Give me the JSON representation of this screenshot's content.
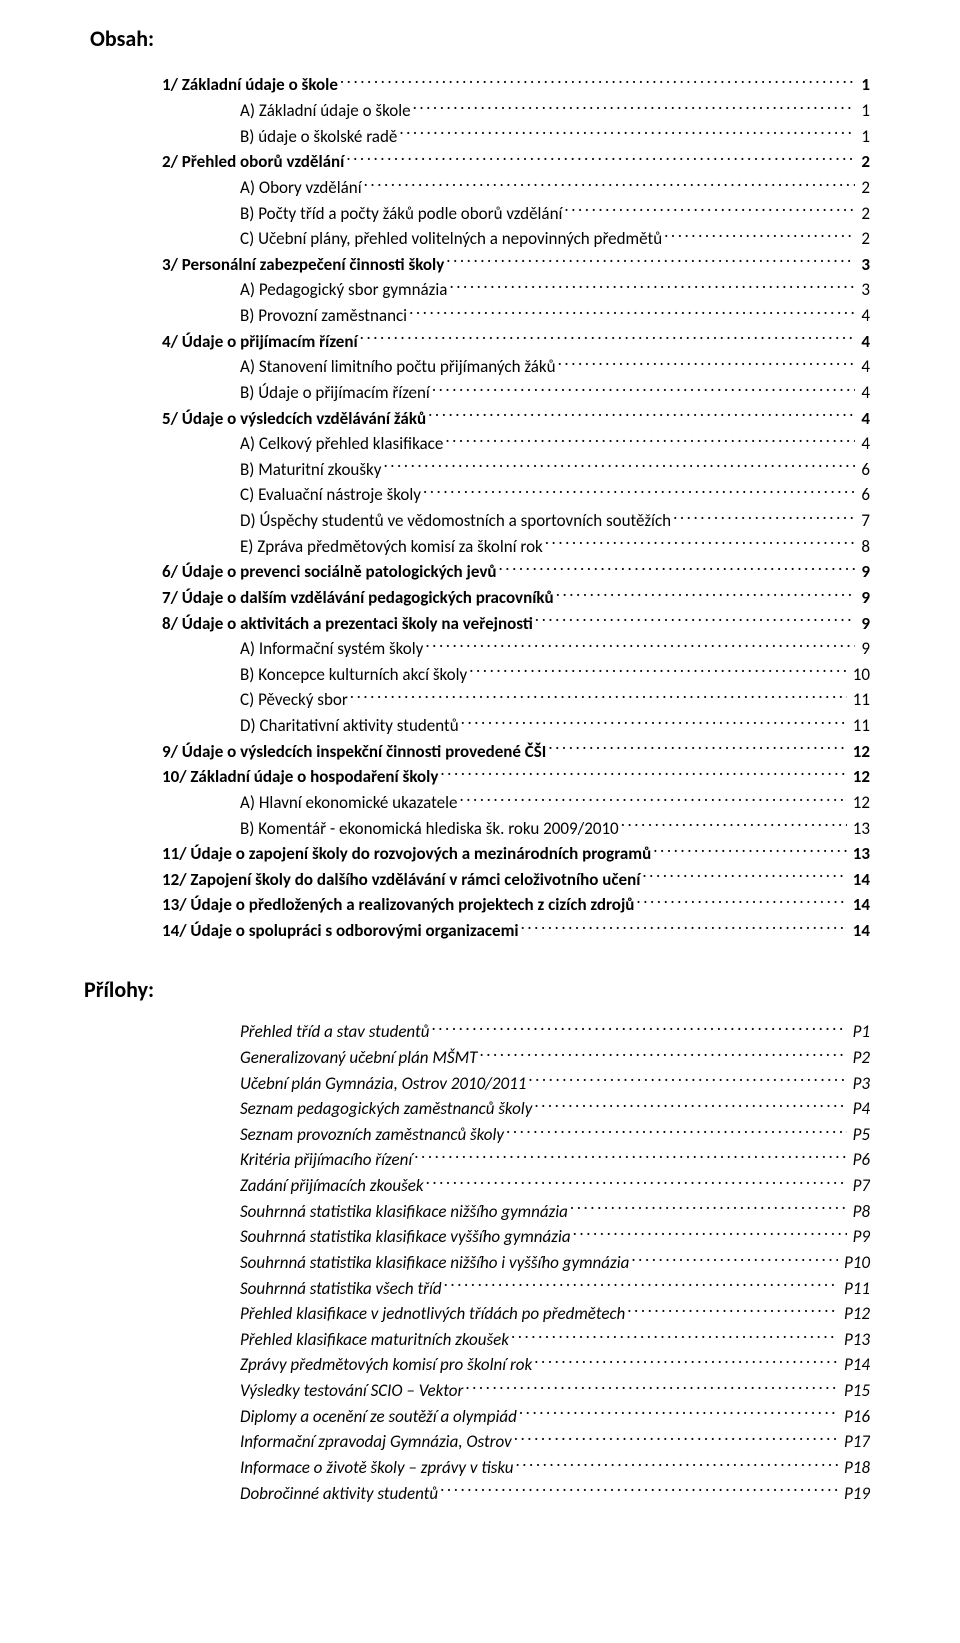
{
  "page": {
    "heading": "Obsah:",
    "subheading": "Přílohy:"
  },
  "toc": [
    {
      "level": 1,
      "bold": true,
      "label": "1/   Základní údaje o škole",
      "page": "1"
    },
    {
      "level": 2,
      "bold": false,
      "label": "A)  Základní údaje o škole",
      "page": "1"
    },
    {
      "level": 2,
      "bold": false,
      "label": "B) údaje o školské radě",
      "page": "1"
    },
    {
      "level": 1,
      "bold": true,
      "label": "2/   Přehled oborů vzdělání",
      "page": "2"
    },
    {
      "level": 2,
      "bold": false,
      "label": "A) Obory vzdělání",
      "page": "2"
    },
    {
      "level": 2,
      "bold": false,
      "label": "B) Počty tříd a počty žáků podle oborů vzdělání",
      "page": "2"
    },
    {
      "level": 2,
      "bold": false,
      "label": "C) Učební plány, přehled volitelných a nepovinných předmětů",
      "page": "2"
    },
    {
      "level": 1,
      "bold": true,
      "label": "3/   Personální zabezpečení činnosti školy",
      "page": "3"
    },
    {
      "level": 2,
      "bold": false,
      "label": "A) Pedagogický sbor gymnázia",
      "page": "3"
    },
    {
      "level": 2,
      "bold": false,
      "label": "B) Provozní zaměstnanci",
      "page": "4"
    },
    {
      "level": 1,
      "bold": true,
      "label": "4/   Údaje o přijímacím řízení",
      "page": "4"
    },
    {
      "level": 2,
      "bold": false,
      "label": "A)  Stanovení limitního počtu přijímaných žáků",
      "page": "4"
    },
    {
      "level": 2,
      "bold": false,
      "label": "B) Údaje o přijímacím řízení",
      "page": "4"
    },
    {
      "level": 1,
      "bold": true,
      "label": "5/   Údaje o výsledcích vzdělávání žáků",
      "page": "4"
    },
    {
      "level": 2,
      "bold": false,
      "label": "A)  Celkový přehled klasifikace",
      "page": "4"
    },
    {
      "level": 2,
      "bold": false,
      "label": "B)  Maturitní zkoušky",
      "page": "6"
    },
    {
      "level": 2,
      "bold": false,
      "label": "C) Evaluační nástroje školy",
      "page": "6"
    },
    {
      "level": 2,
      "bold": false,
      "label": "D) Úspěchy studentů ve vědomostních a sportovních soutěžích",
      "page": "7"
    },
    {
      "level": 2,
      "bold": false,
      "label": "E) Zpráva předmětových komisí za školní rok",
      "page": "8"
    },
    {
      "level": 1,
      "bold": true,
      "label": "6/   Údaje o prevenci sociálně patologických jevů",
      "page": "9"
    },
    {
      "level": 1,
      "bold": true,
      "label": "7/   Údaje o dalším vzdělávání pedagogických pracovníků",
      "page": "9"
    },
    {
      "level": 1,
      "bold": true,
      "label": "8/   Údaje o aktivitách a prezentaci školy na veřejnosti",
      "page": "9"
    },
    {
      "level": 2,
      "bold": false,
      "label": "A) Informační systém školy",
      "page": "9"
    },
    {
      "level": 2,
      "bold": false,
      "label": "B) Koncepce kulturních akcí školy",
      "page": "10"
    },
    {
      "level": 2,
      "bold": false,
      "label": "C) Pěvecký sbor",
      "page": "11"
    },
    {
      "level": 2,
      "bold": false,
      "label": "D) Charitativní aktivity studentů",
      "page": "11"
    },
    {
      "level": 1,
      "bold": true,
      "label": "9/    Údaje o výsledcích inspekční činnosti provedené ČŠI",
      "page": "12"
    },
    {
      "level": 1,
      "bold": true,
      "label": "10/  Základní údaje o hospodaření školy",
      "page": "12"
    },
    {
      "level": 2,
      "bold": false,
      "label": "A)    Hlavní ekonomické ukazatele",
      "page": "12"
    },
    {
      "level": 2,
      "bold": false,
      "label": "B)    Komentář  - ekonomická hlediska šk. roku 2009/2010",
      "page": "13"
    },
    {
      "level": 1,
      "bold": true,
      "label": "11/  Údaje o zapojení školy do rozvojových a mezinárodních programů",
      "page": "13"
    },
    {
      "level": 1,
      "bold": true,
      "label": "12/  Zapojení školy do dalšího vzdělávání v rámci celoživotního učení",
      "page": "14"
    },
    {
      "level": 1,
      "bold": true,
      "label": "13/  Údaje o předložených a realizovaných projektech z cizích zdrojů",
      "page": "14"
    },
    {
      "level": 1,
      "bold": true,
      "label": "14/  Údaje o spolupráci s odborovými organizacemi",
      "page": "14"
    }
  ],
  "appendices": [
    {
      "label": "Přehled tříd a stav studentů",
      "page": "P1"
    },
    {
      "label": "Generalizovaný učební plán MŠMT",
      "page": "P2"
    },
    {
      "label": "Učební plán Gymnázia, Ostrov 2010/2011",
      "page": "P3"
    },
    {
      "label": "Seznam pedagogických zaměstnanců školy",
      "page": "P4"
    },
    {
      "label": "Seznam provozních zaměstnanců školy",
      "page": "P5"
    },
    {
      "label": "Kritéria  přijímacího řízení",
      "page": "P6"
    },
    {
      "label": "Zadání přijímacích zkoušek",
      "page": "P7"
    },
    {
      "label": "Souhrnná statistika klasifikace nižšího gymnázia",
      "page": "P8"
    },
    {
      "label": "Souhrnná statistika klasifikace vyššího gymnázia",
      "page": "P9"
    },
    {
      "label": "Souhrnná statistika klasifikace nižšího i vyššího gymnázia",
      "page": "P10"
    },
    {
      "label": "Souhrnná statistika všech tříd",
      "page": "P11"
    },
    {
      "label": "Přehled klasifikace v jednotlivých třídách po předmětech",
      "page": "P12"
    },
    {
      "label": "Přehled klasifikace maturitních zkoušek",
      "page": "P13"
    },
    {
      "label": "Zprávy předmětových komisí pro školní rok",
      "page": "P14"
    },
    {
      "label": "Výsledky testování SCIO – Vektor",
      "page": "P15"
    },
    {
      "label": "Diplomy a ocenění ze soutěží a olympiád",
      "page": "P16"
    },
    {
      "label": "Informační zpravodaj Gymnázia, Ostrov",
      "page": "P17"
    },
    {
      "label": "Informace o životě školy – zprávy v tisku",
      "page": "  P18"
    },
    {
      "label": "Dobročinné aktivity studentů",
      "page": "P19"
    }
  ]
}
